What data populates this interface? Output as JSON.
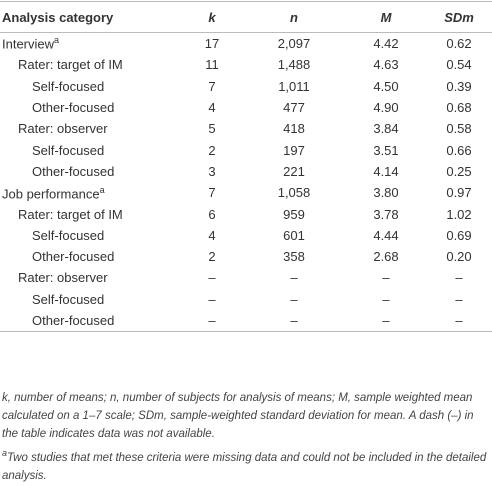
{
  "table": {
    "header": [
      "Analysis category",
      "k",
      "n",
      "M",
      "SDm"
    ],
    "rows": [
      {
        "label": "Interview",
        "note": "a",
        "cells": [
          "17",
          "2,097",
          "4.42",
          "0.62"
        ],
        "groups": [
          {
            "label": "Rater: target of IM",
            "cells": [
              "11",
              "1,488",
              "4.63",
              "0.54"
            ],
            "rows": [
              {
                "label": "Self-focused",
                "cells": [
                  "7",
                  "1,011",
                  "4.50",
                  "0.39"
                ]
              },
              {
                "label": "Other-focused",
                "cells": [
                  "4",
                  "477",
                  "4.90",
                  "0.68"
                ]
              }
            ]
          },
          {
            "label": "Rater: observer",
            "cells": [
              "5",
              "418",
              "3.84",
              "0.58"
            ],
            "rows": [
              {
                "label": "Self-focused",
                "cells": [
                  "2",
                  "197",
                  "3.51",
                  "0.66"
                ]
              },
              {
                "label": "Other-focused",
                "cells": [
                  "3",
                  "221",
                  "4.14",
                  "0.25"
                ]
              }
            ]
          }
        ]
      },
      {
        "label": "Job performance",
        "note": "a",
        "cells": [
          "7",
          "1,058",
          "3.80",
          "0.97"
        ],
        "groups": [
          {
            "label": "Rater: target of IM",
            "cells": [
              "6",
              "959",
              "3.78",
              "1.02"
            ],
            "rows": [
              {
                "label": "Self-focused",
                "cells": [
                  "4",
                  "601",
                  "4.44",
                  "0.69"
                ]
              },
              {
                "label": "Other-focused",
                "cells": [
                  "2",
                  "358",
                  "2.68",
                  "0.20"
                ]
              }
            ]
          },
          {
            "label": "Rater: observer",
            "cells": [
              "–",
              "–",
              "–",
              "–"
            ],
            "rows": [
              {
                "label": "Self-focused",
                "cells": [
                  "–",
                  "–",
                  "–",
                  "–"
                ]
              },
              {
                "label": "Other-focused",
                "cells": [
                  "–",
                  "–",
                  "–",
                  "–"
                ]
              }
            ]
          }
        ]
      }
    ]
  },
  "footnotes": [
    "k, number of means; n, number of subjects for analysis of means; M, sample weighted mean calculated on a 1–7 scale; SDm, sample-weighted standard deviation for mean. A dash (–) in the table indicates data was not available.",
    {
      "mark": "a",
      "text": "Two studies that met these criteria were missing data and could not be included in the detailed analysis."
    }
  ]
}
